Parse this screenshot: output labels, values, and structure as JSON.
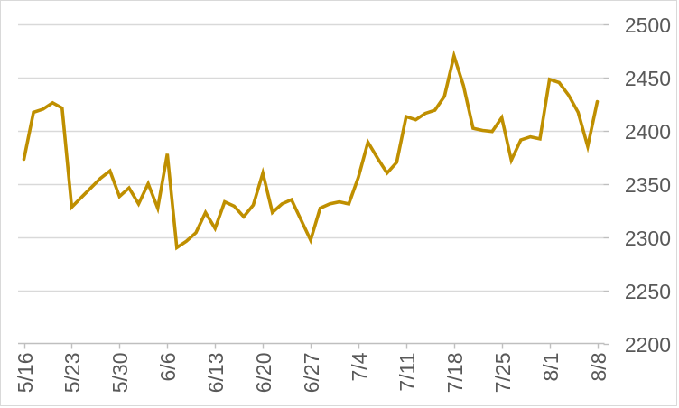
{
  "chart_data": {
    "type": "line",
    "title": "",
    "xlabel": "",
    "ylabel": "",
    "legend": "none",
    "grid": "horizontal",
    "ylim": [
      2200,
      2500
    ],
    "y_tick_step": 50,
    "y_axis_side": "right",
    "y_tick_labels": [
      "2500",
      "2450",
      "2400",
      "2350",
      "2300",
      "2250",
      "2200"
    ],
    "x_tick_labels": [
      "5/16",
      "5/23",
      "5/30",
      "6/6",
      "6/13",
      "6/20",
      "6/27",
      "7/4",
      "7/11",
      "7/18",
      "7/25",
      "8/1",
      "8/8"
    ],
    "x_label_rotation_deg": -90,
    "x": [
      "5/16",
      "5/17",
      "5/18",
      "5/19",
      "5/20",
      "5/23",
      "5/24",
      "5/25",
      "5/26",
      "5/27",
      "5/30",
      "5/31",
      "6/1",
      "6/2",
      "6/3",
      "6/6",
      "6/7",
      "6/8",
      "6/9",
      "6/10",
      "6/13",
      "6/14",
      "6/15",
      "6/16",
      "6/17",
      "6/20",
      "6/21",
      "6/22",
      "6/23",
      "6/24",
      "6/27",
      "6/28",
      "6/29",
      "6/30",
      "7/1",
      "7/4",
      "7/5",
      "7/6",
      "7/7",
      "7/8",
      "7/11",
      "7/12",
      "7/13",
      "7/14",
      "7/15",
      "7/18",
      "7/19",
      "7/20",
      "7/21",
      "7/22",
      "7/25",
      "7/26",
      "7/27",
      "7/28",
      "7/29",
      "8/1",
      "8/2",
      "8/3",
      "8/4",
      "8/5",
      "8/8"
    ],
    "series": [
      {
        "name": "price",
        "values": [
          2373,
          2417,
          2420,
          2426,
          2421,
          2328,
          2337,
          2346,
          2355,
          2362,
          2338,
          2346,
          2331,
          2350,
          2327,
          2378,
          2290,
          2296,
          2304,
          2323,
          2308,
          2333,
          2329,
          2319,
          2330,
          2360,
          2323,
          2331,
          2335,
          2316,
          2297,
          2327,
          2331,
          2333,
          2331,
          2356,
          2389,
          2374,
          2360,
          2370,
          2413,
          2410,
          2416,
          2419,
          2432,
          2470,
          2442,
          2402,
          2400,
          2399,
          2412,
          2372,
          2391,
          2394,
          2392,
          2448,
          2445,
          2433,
          2417,
          2385,
          2427
        ]
      }
    ],
    "colors": {
      "line": "#BF8F00",
      "gridline": "#D9D9D9",
      "axis_line": "#BFBFBF",
      "tick_mark": "#BFBFBF",
      "label_text": "#595959",
      "background": "#FFFFFF",
      "frame_border": "#D9D9D9"
    }
  }
}
